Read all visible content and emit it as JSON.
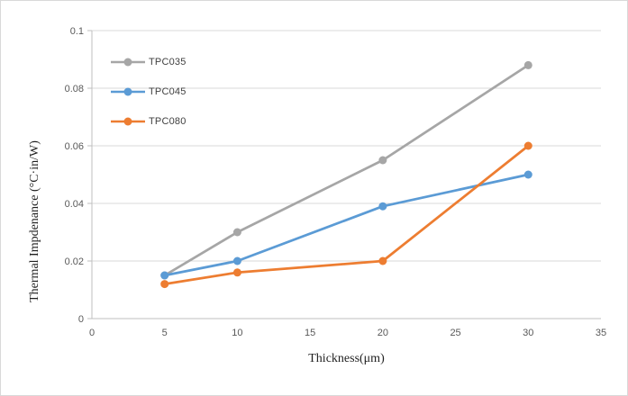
{
  "chart_data": {
    "type": "line",
    "title": "",
    "xlabel": "Thickness(μm)",
    "ylabel": "Thermal Impdenance  (°C·in/W)",
    "x": [
      5,
      10,
      20,
      30
    ],
    "series": [
      {
        "name": "TPC035",
        "color": "#a6a6a6",
        "values": [
          0.015,
          0.03,
          0.055,
          0.088
        ]
      },
      {
        "name": "TPC045",
        "color": "#5b9bd5",
        "values": [
          0.015,
          0.02,
          0.039,
          0.05
        ]
      },
      {
        "name": "TPC080",
        "color": "#ed7d31",
        "values": [
          0.012,
          0.016,
          0.02,
          0.06
        ]
      }
    ],
    "xlim": [
      0,
      35
    ],
    "ylim": [
      0,
      0.1
    ],
    "x_ticks": [
      {
        "value": 0,
        "label": "0"
      },
      {
        "value": 5,
        "label": "5"
      },
      {
        "value": 10,
        "label": "10"
      },
      {
        "value": 15,
        "label": "15"
      },
      {
        "value": 20,
        "label": "20"
      },
      {
        "value": 25,
        "label": "25"
      },
      {
        "value": 30,
        "label": "30"
      },
      {
        "value": 35,
        "label": "35"
      }
    ],
    "y_ticks": [
      {
        "value": 0,
        "label": "0"
      },
      {
        "value": 0.02,
        "label": "0.02"
      },
      {
        "value": 0.04,
        "label": "0.04"
      },
      {
        "value": 0.06,
        "label": "0.06"
      },
      {
        "value": 0.08,
        "label": "0.08"
      },
      {
        "value": 0.1,
        "label": "0.1"
      }
    ],
    "grid": "horizontal",
    "legend_position": "inside-top-left",
    "marker": "circle",
    "colors": {
      "gridline": "#d9d9d9",
      "axis_line": "#bfbfbf",
      "tick_label": "#595959",
      "axis_title": "#1f1f1f",
      "legend_text": "#404040",
      "frame_border": "#d9d9d9"
    }
  }
}
